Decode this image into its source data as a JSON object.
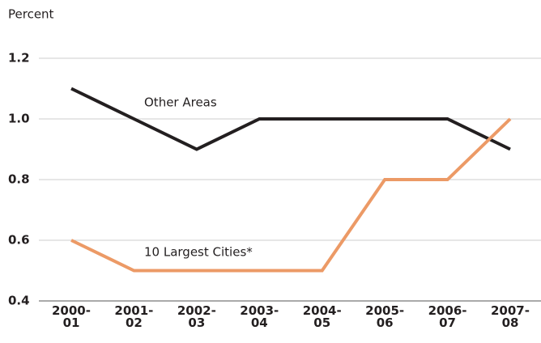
{
  "chart_data": {
    "type": "line",
    "y_label": "Percent",
    "categories": [
      "2000-\n01",
      "2001-\n02",
      "2002-\n03",
      "2003-\n04",
      "2004-\n05",
      "2005-\n06",
      "2006-\n07",
      "2007-\n08"
    ],
    "series": [
      {
        "name": "Other Areas",
        "color": "#231f20",
        "values": [
          1.1,
          1.0,
          0.9,
          1.0,
          1.0,
          1.0,
          1.0,
          0.9
        ]
      },
      {
        "name": "10 Largest Cities*",
        "color": "#ec9a66",
        "values": [
          0.6,
          0.5,
          0.5,
          0.5,
          0.5,
          0.8,
          0.8,
          1.0
        ]
      }
    ],
    "ylim": [
      0.4,
      1.2
    ],
    "yticks": [
      0.4,
      0.6,
      0.8,
      {
        "value": 1,
        "label": "1.0"
      },
      1.2
    ],
    "grid": true
  }
}
